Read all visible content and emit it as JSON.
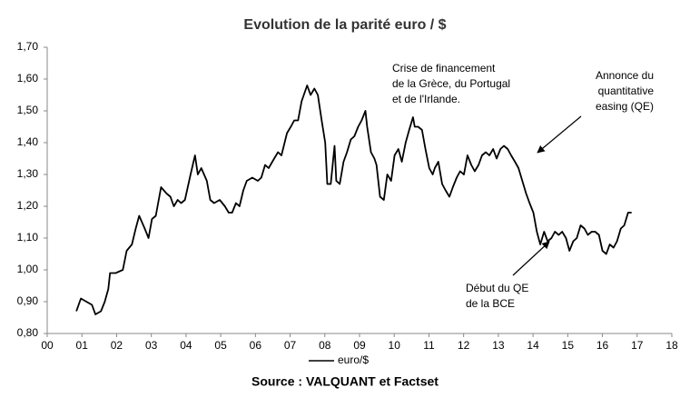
{
  "chart_data": {
    "type": "line",
    "title": "Evolution de la parité euro / $",
    "source": "Source : VALQUANT et Factset",
    "xlim": [
      0,
      18
    ],
    "ylim": [
      0.8,
      1.7
    ],
    "xticks": [
      {
        "value": 0,
        "label": "00"
      },
      {
        "value": 1,
        "label": "01"
      },
      {
        "value": 2,
        "label": "02"
      },
      {
        "value": 3,
        "label": "03"
      },
      {
        "value": 4,
        "label": "04"
      },
      {
        "value": 5,
        "label": "05"
      },
      {
        "value": 6,
        "label": "06"
      },
      {
        "value": 7,
        "label": "07"
      },
      {
        "value": 8,
        "label": "08"
      },
      {
        "value": 9,
        "label": "09"
      },
      {
        "value": 10,
        "label": "10"
      },
      {
        "value": 11,
        "label": "11"
      },
      {
        "value": 12,
        "label": "12"
      },
      {
        "value": 13,
        "label": "13"
      },
      {
        "value": 14,
        "label": "14"
      },
      {
        "value": 15,
        "label": "15"
      },
      {
        "value": 16,
        "label": "16"
      },
      {
        "value": 17,
        "label": "17"
      },
      {
        "value": 18,
        "label": "18"
      }
    ],
    "yticks": [
      {
        "value": 0.8,
        "label": "0,80"
      },
      {
        "value": 0.9,
        "label": "0,90"
      },
      {
        "value": 1.0,
        "label": "1,00"
      },
      {
        "value": 1.1,
        "label": "1,10"
      },
      {
        "value": 1.2,
        "label": "1,20"
      },
      {
        "value": 1.3,
        "label": "1,30"
      },
      {
        "value": 1.4,
        "label": "1,40"
      },
      {
        "value": 1.5,
        "label": "1,50"
      },
      {
        "value": 1.6,
        "label": "1,60"
      },
      {
        "value": 1.7,
        "label": "1,70"
      }
    ],
    "grid": false,
    "legend": "bottom",
    "annotations": [
      {
        "lines": [
          "Crise de financement",
          "de la Grèce, du Portugal",
          "et de l'Irlande."
        ]
      },
      {
        "lines": [
          "Annonce du",
          "quantitative",
          "easing (QE)"
        ]
      },
      {
        "lines": [
          "Début du QE",
          "de la BCE"
        ]
      }
    ],
    "series": [
      {
        "name": "euro/$",
        "color": "#000000",
        "x": [
          0.84,
          0.97,
          1.13,
          1.29,
          1.39,
          1.55,
          1.66,
          1.76,
          1.81,
          1.97,
          2.18,
          2.29,
          2.44,
          2.55,
          2.65,
          2.81,
          2.92,
          3.02,
          3.13,
          3.28,
          3.44,
          3.55,
          3.65,
          3.76,
          3.86,
          3.97,
          4.13,
          4.26,
          4.34,
          4.44,
          4.6,
          4.7,
          4.81,
          4.97,
          5.12,
          5.23,
          5.33,
          5.44,
          5.54,
          5.65,
          5.75,
          5.91,
          6.07,
          6.17,
          6.28,
          6.38,
          6.54,
          6.65,
          6.75,
          6.91,
          7.02,
          7.12,
          7.23,
          7.33,
          7.49,
          7.59,
          7.7,
          7.8,
          7.91,
          8.01,
          8.07,
          8.17,
          8.28,
          8.33,
          8.43,
          8.54,
          8.64,
          8.75,
          8.85,
          8.96,
          9.06,
          9.17,
          9.22,
          9.33,
          9.43,
          9.49,
          9.59,
          9.7,
          9.8,
          9.91,
          10.01,
          10.12,
          10.22,
          10.33,
          10.43,
          10.54,
          10.59,
          10.69,
          10.8,
          10.9,
          11.01,
          11.11,
          11.17,
          11.27,
          11.38,
          11.48,
          11.59,
          11.69,
          11.8,
          11.9,
          12.01,
          12.11,
          12.22,
          12.32,
          12.43,
          12.53,
          12.64,
          12.74,
          12.85,
          12.95,
          13.06,
          13.16,
          13.27,
          13.37,
          13.48,
          13.58,
          13.69,
          13.8,
          13.9,
          14.01,
          14.11,
          14.21,
          14.32,
          14.42,
          14.53,
          14.63,
          14.74,
          14.84,
          14.95,
          15.05,
          15.16,
          15.26,
          15.37,
          15.48,
          15.58,
          15.69,
          15.79,
          15.9,
          16.0,
          16.11,
          16.21,
          16.32,
          16.42,
          16.53,
          16.63,
          16.74,
          16.84
        ],
        "values": [
          0.87,
          0.91,
          0.9,
          0.89,
          0.86,
          0.87,
          0.9,
          0.94,
          0.99,
          0.99,
          1.0,
          1.06,
          1.08,
          1.13,
          1.17,
          1.13,
          1.1,
          1.16,
          1.17,
          1.26,
          1.24,
          1.23,
          1.2,
          1.22,
          1.21,
          1.22,
          1.3,
          1.36,
          1.3,
          1.32,
          1.28,
          1.22,
          1.21,
          1.22,
          1.2,
          1.18,
          1.18,
          1.21,
          1.2,
          1.25,
          1.28,
          1.29,
          1.28,
          1.29,
          1.33,
          1.32,
          1.35,
          1.37,
          1.36,
          1.43,
          1.45,
          1.47,
          1.47,
          1.53,
          1.58,
          1.55,
          1.57,
          1.55,
          1.47,
          1.4,
          1.27,
          1.27,
          1.39,
          1.28,
          1.27,
          1.34,
          1.37,
          1.41,
          1.42,
          1.45,
          1.47,
          1.5,
          1.45,
          1.37,
          1.35,
          1.33,
          1.23,
          1.22,
          1.3,
          1.28,
          1.36,
          1.38,
          1.34,
          1.4,
          1.44,
          1.48,
          1.45,
          1.45,
          1.44,
          1.38,
          1.32,
          1.3,
          1.32,
          1.34,
          1.27,
          1.25,
          1.23,
          1.26,
          1.29,
          1.31,
          1.3,
          1.36,
          1.33,
          1.31,
          1.33,
          1.36,
          1.37,
          1.36,
          1.38,
          1.35,
          1.38,
          1.39,
          1.38,
          1.36,
          1.34,
          1.32,
          1.28,
          1.24,
          1.21,
          1.18,
          1.12,
          1.08,
          1.12,
          1.09,
          1.1,
          1.12,
          1.11,
          1.12,
          1.1,
          1.06,
          1.09,
          1.1,
          1.14,
          1.13,
          1.11,
          1.12,
          1.12,
          1.11,
          1.06,
          1.05,
          1.08,
          1.07,
          1.09,
          1.13,
          1.14,
          1.18,
          1.18
        ]
      }
    ]
  }
}
